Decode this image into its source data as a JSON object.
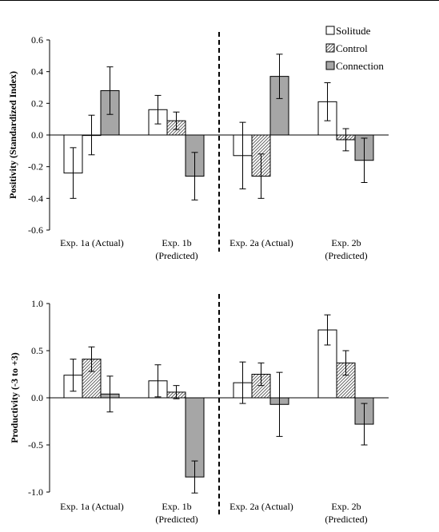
{
  "chart_data": [
    {
      "type": "bar",
      "ylabel": "Positivity (Standardized Index)",
      "ylim": [
        -0.6,
        0.6
      ],
      "yticks": [
        "0.6",
        "0.4",
        "0.2",
        "0.0",
        "-0.2",
        "-0.4",
        "-0.6"
      ],
      "ytick_values": [
        0.6,
        0.4,
        0.2,
        0.0,
        -0.2,
        -0.4,
        -0.6
      ],
      "categories": [
        [
          "Exp. 1a (Actual)"
        ],
        [
          "Exp. 1b",
          "(Predicted)"
        ],
        [
          "Exp. 2a (Actual)"
        ],
        [
          "Exp. 2b",
          "(Predicted)"
        ]
      ],
      "legend": {
        "placement": "top-right",
        "entries": [
          "Solitude",
          "Control",
          "Connection"
        ]
      },
      "divider_after_category": 1,
      "series": [
        {
          "name": "Solitude",
          "values": [
            -0.24,
            0.16,
            -0.13,
            0.21
          ],
          "errors": [
            0.16,
            0.09,
            0.21,
            0.12
          ]
        },
        {
          "name": "Control",
          "values": [
            0.0,
            0.09,
            -0.26,
            -0.03
          ],
          "errors": [
            0.125,
            0.055,
            0.14,
            0.07
          ]
        },
        {
          "name": "Connection",
          "values": [
            0.28,
            -0.26,
            0.37,
            -0.16
          ],
          "errors": [
            0.15,
            0.15,
            0.14,
            0.14
          ]
        }
      ]
    },
    {
      "type": "bar",
      "ylabel": "Productivity (-3 to +3)",
      "ylim": [
        -1.0,
        1.0
      ],
      "yticks": [
        "1.0",
        "0.5",
        "0.0",
        "-0.5",
        "-1.0"
      ],
      "ytick_values": [
        1.0,
        0.5,
        0.0,
        -0.5,
        -1.0
      ],
      "categories": [
        [
          "Exp. 1a (Actual)"
        ],
        [
          "Exp. 1b",
          "(Predicted)"
        ],
        [
          "Exp. 2a (Actual)"
        ],
        [
          "Exp. 2b",
          "(Predicted)"
        ]
      ],
      "divider_after_category": 1,
      "series": [
        {
          "name": "Solitude",
          "values": [
            0.24,
            0.18,
            0.16,
            0.72
          ],
          "errors": [
            0.17,
            0.17,
            0.22,
            0.16
          ]
        },
        {
          "name": "Control",
          "values": [
            0.41,
            0.06,
            0.25,
            0.37
          ],
          "errors": [
            0.13,
            0.07,
            0.12,
            0.13
          ]
        },
        {
          "name": "Connection",
          "values": [
            0.04,
            -0.84,
            -0.07,
            -0.28
          ],
          "errors": [
            0.19,
            0.17,
            0.34,
            0.22
          ]
        }
      ]
    }
  ]
}
